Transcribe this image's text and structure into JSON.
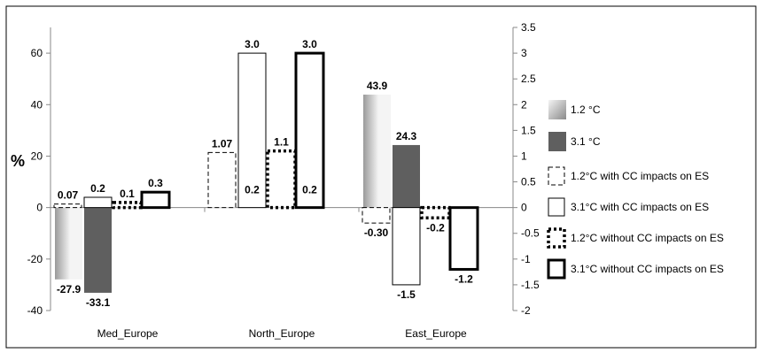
{
  "chart_data": {
    "type": "bar",
    "ylabel": "%",
    "ylim": [
      -40,
      70
    ],
    "yticks": [
      60,
      40,
      20,
      0,
      -20,
      -40
    ],
    "y2lim": [
      -2,
      3.5
    ],
    "y2ticks": [
      "3.5",
      "3",
      "2.5",
      "2",
      "1.5",
      "1",
      "0.5",
      "0",
      "-0.5",
      "-1",
      "-1.5",
      "-2"
    ],
    "categories": [
      "Med_Europe",
      "North_Europe",
      "East_Europe"
    ],
    "legend_position": "right",
    "series": [
      {
        "name": "1.2 °C",
        "axis": "left",
        "style": "gradient-light",
        "values": [
          -27.9,
          null,
          43.9
        ],
        "labels": [
          "-27.9",
          "",
          "43.9"
        ]
      },
      {
        "name": "3.1 °C",
        "axis": "left",
        "style": "solid-dark",
        "values": [
          -33.1,
          null,
          24.3
        ],
        "labels": [
          "-33.1",
          "",
          "24.3"
        ]
      },
      {
        "name": "1.2°C with CC impacts on ES",
        "axis": "right",
        "style": "dashed-thin",
        "values": [
          0.07,
          1.07,
          -0.3
        ],
        "labels": [
          "0.07",
          "1.07",
          "-0.30"
        ]
      },
      {
        "name": "3.1°C with CC impacts on ES",
        "axis": "right",
        "style": "solid-thin",
        "values": [
          0.2,
          3.0,
          -1.5
        ],
        "labels": [
          "0.2",
          "3.0",
          "-1.5"
        ]
      },
      {
        "name": "1.2°C without CC impacts on ES",
        "axis": "right",
        "style": "dotted-thick",
        "values": [
          0.1,
          1.1,
          -0.2
        ],
        "labels": [
          "0.1",
          "1.1",
          "-0.2"
        ]
      },
      {
        "name": "3.1°C without CC impacts on ES",
        "axis": "right",
        "style": "solid-thick",
        "values": [
          0.3,
          3.0,
          -1.2
        ],
        "labels": [
          "0.3",
          "3.0",
          "-1.2"
        ]
      }
    ],
    "extra_labels": [
      {
        "category": "North_Europe",
        "series_index": 3,
        "text": "0.2"
      },
      {
        "category": "North_Europe",
        "series_index": 5,
        "text": "0.2"
      }
    ]
  },
  "colors": {
    "series2_fill": "#5f5f5f",
    "gradient_light": "#f4f4f4",
    "gradient_dark": "#9a9a9a",
    "axis": "#888888"
  }
}
